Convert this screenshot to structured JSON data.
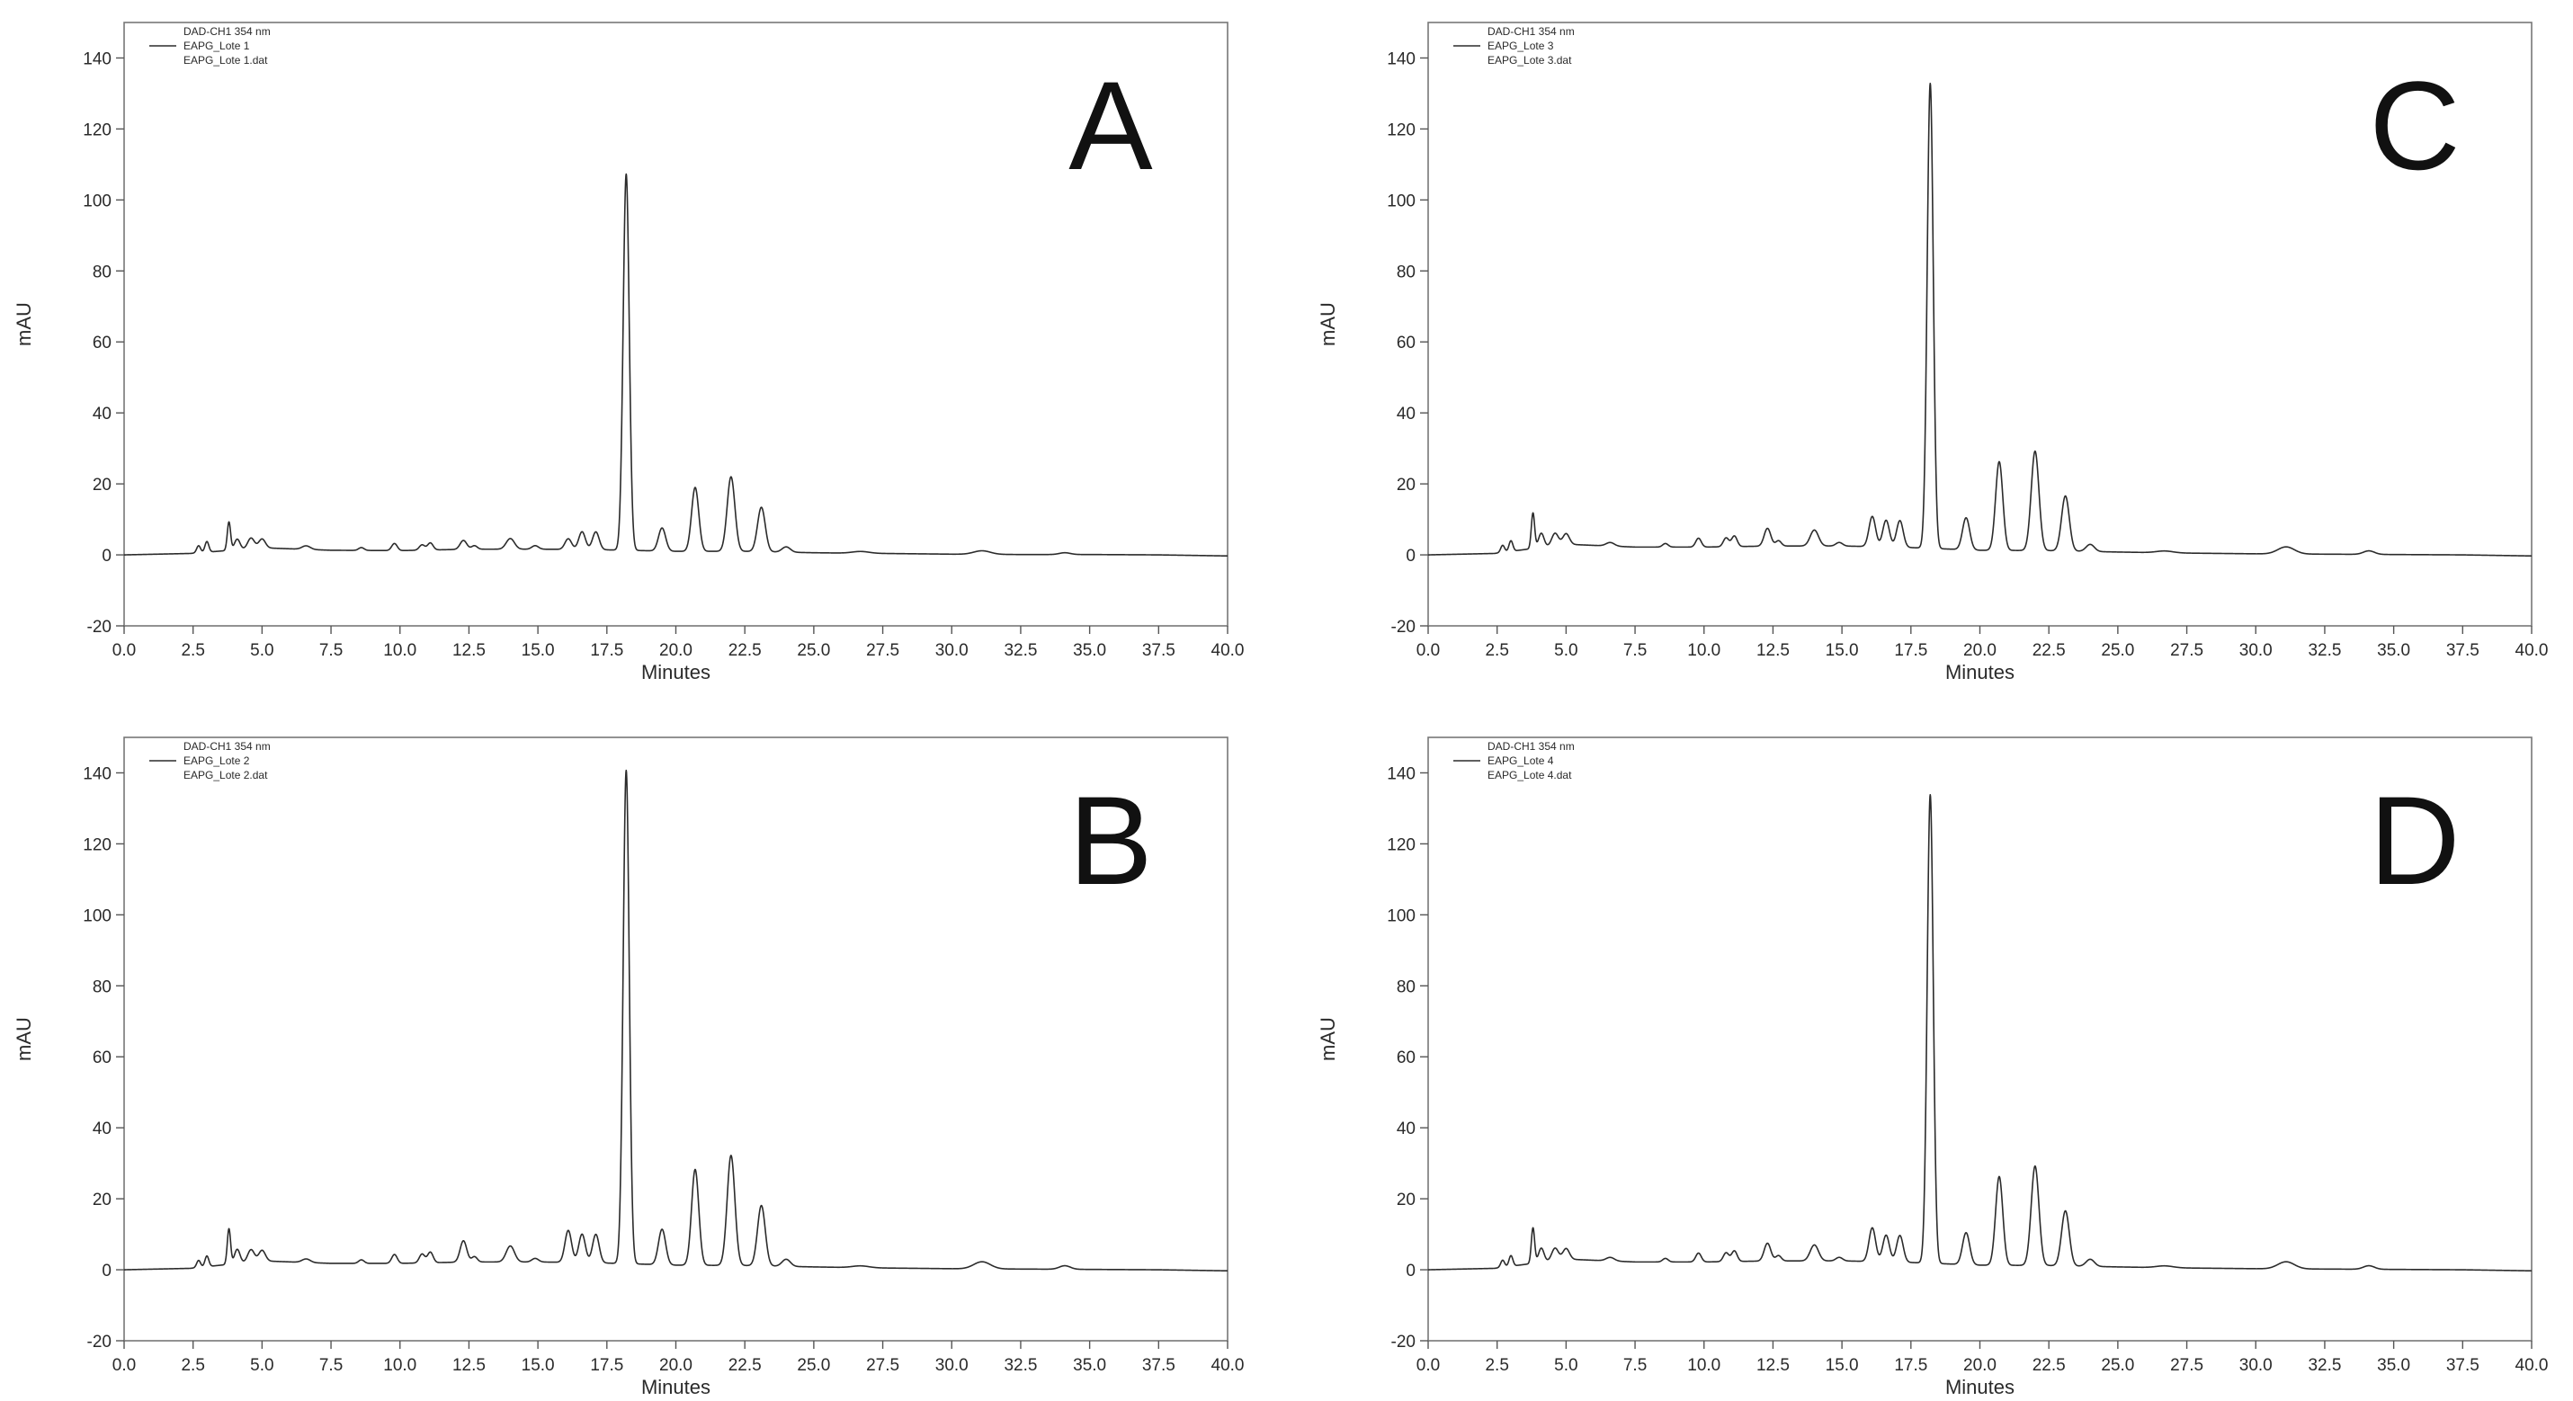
{
  "chart_data": [
    {
      "type": "line",
      "panel_label": "A",
      "xlabel": "Minutes",
      "ylabel": "mAU",
      "xlim": [
        0,
        40
      ],
      "ylim": [
        -20,
        150
      ],
      "x_ticks": [
        "0.0",
        "2.5",
        "5.0",
        "7.5",
        "10.0",
        "12.5",
        "15.0",
        "17.5",
        "20.0",
        "22.5",
        "25.0",
        "27.5",
        "30.0",
        "32.5",
        "35.0",
        "37.5",
        "40.0"
      ],
      "y_ticks": [
        "-20",
        "0",
        "20",
        "40",
        "60",
        "80",
        "100",
        "120",
        "140"
      ],
      "legend": {
        "placement": "top-left",
        "title": "DAD-CH1  354 nm",
        "entries": [
          "EAPG_Lote 1",
          "EAPG_Lote 1.dat"
        ]
      },
      "grid": false,
      "baseline": [
        [
          0,
          0
        ],
        [
          2.4,
          0.4
        ],
        [
          5,
          2
        ],
        [
          7.5,
          1.3
        ],
        [
          10,
          1.2
        ],
        [
          12.5,
          1.6
        ],
        [
          15,
          1.6
        ],
        [
          17,
          1.5
        ],
        [
          20,
          1
        ],
        [
          22.5,
          1
        ],
        [
          25,
          0.6
        ],
        [
          27.5,
          0.4
        ],
        [
          30,
          0.2
        ],
        [
          32.5,
          0.1
        ],
        [
          35,
          0.1
        ],
        [
          37.5,
          0
        ],
        [
          40,
          -0.3
        ]
      ],
      "peaks": [
        {
          "rt": 2.7,
          "height": 2,
          "width": 0.07
        },
        {
          "rt": 3.0,
          "height": 3,
          "width": 0.07
        },
        {
          "rt": 3.8,
          "height": 8,
          "width": 0.06
        },
        {
          "rt": 4.1,
          "height": 3,
          "width": 0.1
        },
        {
          "rt": 4.6,
          "height": 3,
          "width": 0.12
        },
        {
          "rt": 5.0,
          "height": 2.5,
          "width": 0.12
        },
        {
          "rt": 6.6,
          "height": 1,
          "width": 0.15
        },
        {
          "rt": 8.6,
          "height": 0.8,
          "width": 0.1
        },
        {
          "rt": 9.8,
          "height": 2,
          "width": 0.1
        },
        {
          "rt": 10.8,
          "height": 1.5,
          "width": 0.1
        },
        {
          "rt": 11.1,
          "height": 2,
          "width": 0.1
        },
        {
          "rt": 12.3,
          "height": 2.5,
          "width": 0.12
        },
        {
          "rt": 12.7,
          "height": 1,
          "width": 0.1
        },
        {
          "rt": 14.0,
          "height": 3,
          "width": 0.15
        },
        {
          "rt": 14.9,
          "height": 1,
          "width": 0.12
        },
        {
          "rt": 16.1,
          "height": 3,
          "width": 0.12
        },
        {
          "rt": 16.6,
          "height": 5,
          "width": 0.12
        },
        {
          "rt": 17.1,
          "height": 5,
          "width": 0.12
        },
        {
          "rt": 18.2,
          "height": 106,
          "width": 0.11
        },
        {
          "rt": 19.5,
          "height": 6.5,
          "width": 0.13
        },
        {
          "rt": 20.7,
          "height": 18,
          "width": 0.13
        },
        {
          "rt": 22.0,
          "height": 21,
          "width": 0.14
        },
        {
          "rt": 23.1,
          "height": 12.5,
          "width": 0.14
        },
        {
          "rt": 24.0,
          "height": 1.5,
          "width": 0.15
        },
        {
          "rt": 26.7,
          "height": 0.5,
          "width": 0.3
        },
        {
          "rt": 31.1,
          "height": 1,
          "width": 0.3
        },
        {
          "rt": 34.1,
          "height": 0.5,
          "width": 0.2
        }
      ]
    },
    {
      "type": "line",
      "panel_label": "B",
      "xlabel": "Minutes",
      "ylabel": "mAU",
      "xlim": [
        0,
        40
      ],
      "ylim": [
        -20,
        150
      ],
      "x_ticks": [
        "0.0",
        "2.5",
        "5.0",
        "7.5",
        "10.0",
        "12.5",
        "15.0",
        "17.5",
        "20.0",
        "22.5",
        "25.0",
        "27.5",
        "30.0",
        "32.5",
        "35.0",
        "37.5",
        "40.0"
      ],
      "y_ticks": [
        "-20",
        "0",
        "20",
        "40",
        "60",
        "80",
        "100",
        "120",
        "140"
      ],
      "legend": {
        "placement": "top-left",
        "title": "DAD-CH1  354 nm",
        "entries": [
          "EAPG_Lote 2",
          "EAPG_Lote 2.dat"
        ]
      },
      "grid": false,
      "baseline": [
        [
          0,
          0
        ],
        [
          2.4,
          0.4
        ],
        [
          5,
          2.5
        ],
        [
          7.5,
          1.8
        ],
        [
          10,
          1.8
        ],
        [
          12.5,
          2.2
        ],
        [
          15,
          2.2
        ],
        [
          17,
          2
        ],
        [
          20,
          1.3
        ],
        [
          22.5,
          1.2
        ],
        [
          25,
          0.8
        ],
        [
          27.5,
          0.5
        ],
        [
          30,
          0.3
        ],
        [
          32.5,
          0.2
        ],
        [
          35,
          0.1
        ],
        [
          37.5,
          0
        ],
        [
          40,
          -0.3
        ]
      ],
      "peaks": [
        {
          "rt": 2.7,
          "height": 2,
          "width": 0.07
        },
        {
          "rt": 3.0,
          "height": 3,
          "width": 0.07
        },
        {
          "rt": 3.8,
          "height": 10,
          "width": 0.06
        },
        {
          "rt": 4.1,
          "height": 4,
          "width": 0.1
        },
        {
          "rt": 4.6,
          "height": 3.5,
          "width": 0.12
        },
        {
          "rt": 5.0,
          "height": 3,
          "width": 0.12
        },
        {
          "rt": 6.6,
          "height": 1,
          "width": 0.15
        },
        {
          "rt": 8.6,
          "height": 1,
          "width": 0.1
        },
        {
          "rt": 9.8,
          "height": 2.5,
          "width": 0.1
        },
        {
          "rt": 10.8,
          "height": 2.5,
          "width": 0.1
        },
        {
          "rt": 11.1,
          "height": 3,
          "width": 0.1
        },
        {
          "rt": 12.3,
          "height": 6,
          "width": 0.12
        },
        {
          "rt": 12.7,
          "height": 1.5,
          "width": 0.1
        },
        {
          "rt": 14.0,
          "height": 4.5,
          "width": 0.15
        },
        {
          "rt": 14.9,
          "height": 1,
          "width": 0.12
        },
        {
          "rt": 16.1,
          "height": 9,
          "width": 0.12
        },
        {
          "rt": 16.6,
          "height": 8,
          "width": 0.12
        },
        {
          "rt": 17.1,
          "height": 8,
          "width": 0.12
        },
        {
          "rt": 18.2,
          "height": 139,
          "width": 0.11
        },
        {
          "rt": 19.5,
          "height": 10,
          "width": 0.13
        },
        {
          "rt": 20.7,
          "height": 27,
          "width": 0.13
        },
        {
          "rt": 22.0,
          "height": 31,
          "width": 0.14
        },
        {
          "rt": 23.1,
          "height": 17,
          "width": 0.14
        },
        {
          "rt": 24.0,
          "height": 2,
          "width": 0.15
        },
        {
          "rt": 26.7,
          "height": 0.5,
          "width": 0.3
        },
        {
          "rt": 31.1,
          "height": 2,
          "width": 0.3
        },
        {
          "rt": 34.1,
          "height": 1,
          "width": 0.2
        }
      ]
    },
    {
      "type": "line",
      "panel_label": "C",
      "xlabel": "Minutes",
      "ylabel": "mAU",
      "xlim": [
        0,
        40
      ],
      "ylim": [
        -20,
        150
      ],
      "x_ticks": [
        "0.0",
        "2.5",
        "5.0",
        "7.5",
        "10.0",
        "12.5",
        "15.0",
        "17.5",
        "20.0",
        "22.5",
        "25.0",
        "27.5",
        "30.0",
        "32.5",
        "35.0",
        "37.5",
        "40.0"
      ],
      "y_ticks": [
        "-20",
        "0",
        "20",
        "40",
        "60",
        "80",
        "100",
        "120",
        "140"
      ],
      "legend": {
        "placement": "top-left",
        "title": "DAD-CH1  354 nm",
        "entries": [
          "EAPG_Lote 3",
          "EAPG_Lote 3.dat"
        ]
      },
      "grid": false,
      "baseline": [
        [
          0,
          0
        ],
        [
          2.4,
          0.4
        ],
        [
          5,
          3
        ],
        [
          7.5,
          2.2
        ],
        [
          10,
          2.2
        ],
        [
          12.5,
          2.5
        ],
        [
          15,
          2.5
        ],
        [
          17,
          2.2
        ],
        [
          20,
          1.3
        ],
        [
          22.5,
          1.2
        ],
        [
          25,
          0.8
        ],
        [
          27.5,
          0.5
        ],
        [
          30,
          0.3
        ],
        [
          32.5,
          0.2
        ],
        [
          35,
          0.1
        ],
        [
          37.5,
          0
        ],
        [
          40,
          -0.3
        ]
      ],
      "peaks": [
        {
          "rt": 2.7,
          "height": 2,
          "width": 0.07
        },
        {
          "rt": 3.0,
          "height": 3,
          "width": 0.07
        },
        {
          "rt": 3.8,
          "height": 10,
          "width": 0.06
        },
        {
          "rt": 4.1,
          "height": 4,
          "width": 0.1
        },
        {
          "rt": 4.6,
          "height": 3.5,
          "width": 0.12
        },
        {
          "rt": 5.0,
          "height": 3,
          "width": 0.12
        },
        {
          "rt": 6.6,
          "height": 1,
          "width": 0.15
        },
        {
          "rt": 8.6,
          "height": 1,
          "width": 0.1
        },
        {
          "rt": 9.8,
          "height": 2.5,
          "width": 0.1
        },
        {
          "rt": 10.8,
          "height": 2.5,
          "width": 0.1
        },
        {
          "rt": 11.1,
          "height": 3,
          "width": 0.1
        },
        {
          "rt": 12.3,
          "height": 5,
          "width": 0.12
        },
        {
          "rt": 12.7,
          "height": 1.5,
          "width": 0.1
        },
        {
          "rt": 14.0,
          "height": 4.5,
          "width": 0.15
        },
        {
          "rt": 14.9,
          "height": 1,
          "width": 0.12
        },
        {
          "rt": 16.1,
          "height": 8.5,
          "width": 0.12
        },
        {
          "rt": 16.6,
          "height": 7.5,
          "width": 0.12
        },
        {
          "rt": 17.1,
          "height": 7.5,
          "width": 0.12
        },
        {
          "rt": 18.2,
          "height": 131,
          "width": 0.11
        },
        {
          "rt": 19.5,
          "height": 9,
          "width": 0.13
        },
        {
          "rt": 20.7,
          "height": 25,
          "width": 0.13
        },
        {
          "rt": 22.0,
          "height": 28,
          "width": 0.14
        },
        {
          "rt": 23.1,
          "height": 15.5,
          "width": 0.14
        },
        {
          "rt": 24.0,
          "height": 2,
          "width": 0.15
        },
        {
          "rt": 26.7,
          "height": 0.5,
          "width": 0.3
        },
        {
          "rt": 31.1,
          "height": 2,
          "width": 0.3
        },
        {
          "rt": 34.1,
          "height": 1,
          "width": 0.2
        }
      ]
    },
    {
      "type": "line",
      "panel_label": "D",
      "xlabel": "Minutes",
      "ylabel": "mAU",
      "xlim": [
        0,
        40
      ],
      "ylim": [
        -20,
        150
      ],
      "x_ticks": [
        "0.0",
        "2.5",
        "5.0",
        "7.5",
        "10.0",
        "12.5",
        "15.0",
        "17.5",
        "20.0",
        "22.5",
        "25.0",
        "27.5",
        "30.0",
        "32.5",
        "35.0",
        "37.5",
        "40.0"
      ],
      "y_ticks": [
        "-20",
        "0",
        "20",
        "40",
        "60",
        "80",
        "100",
        "120",
        "140"
      ],
      "legend": {
        "placement": "top-left",
        "title": "DAD-CH1  354 nm",
        "entries": [
          "EAPG_Lote 4",
          "EAPG_Lote 4.dat"
        ]
      },
      "grid": false,
      "baseline": [
        [
          0,
          0
        ],
        [
          2.4,
          0.4
        ],
        [
          5,
          3
        ],
        [
          7.5,
          2.2
        ],
        [
          10,
          2.2
        ],
        [
          12.5,
          2.5
        ],
        [
          15,
          2.5
        ],
        [
          17,
          2.2
        ],
        [
          20,
          1.3
        ],
        [
          22.5,
          1.2
        ],
        [
          25,
          0.8
        ],
        [
          27.5,
          0.5
        ],
        [
          30,
          0.3
        ],
        [
          32.5,
          0.2
        ],
        [
          35,
          0.1
        ],
        [
          37.5,
          0
        ],
        [
          40,
          -0.3
        ]
      ],
      "peaks": [
        {
          "rt": 2.7,
          "height": 2,
          "width": 0.07
        },
        {
          "rt": 3.0,
          "height": 3,
          "width": 0.07
        },
        {
          "rt": 3.8,
          "height": 10,
          "width": 0.06
        },
        {
          "rt": 4.1,
          "height": 4,
          "width": 0.1
        },
        {
          "rt": 4.6,
          "height": 3.5,
          "width": 0.12
        },
        {
          "rt": 5.0,
          "height": 3,
          "width": 0.12
        },
        {
          "rt": 6.6,
          "height": 1,
          "width": 0.15
        },
        {
          "rt": 8.6,
          "height": 1,
          "width": 0.1
        },
        {
          "rt": 9.8,
          "height": 2.5,
          "width": 0.1
        },
        {
          "rt": 10.8,
          "height": 2.5,
          "width": 0.1
        },
        {
          "rt": 11.1,
          "height": 3,
          "width": 0.1
        },
        {
          "rt": 12.3,
          "height": 5,
          "width": 0.12
        },
        {
          "rt": 12.7,
          "height": 1.5,
          "width": 0.1
        },
        {
          "rt": 14.0,
          "height": 4.5,
          "width": 0.15
        },
        {
          "rt": 14.9,
          "height": 1,
          "width": 0.12
        },
        {
          "rt": 16.1,
          "height": 9.5,
          "width": 0.12
        },
        {
          "rt": 16.6,
          "height": 7.5,
          "width": 0.12
        },
        {
          "rt": 17.1,
          "height": 7.5,
          "width": 0.12
        },
        {
          "rt": 18.2,
          "height": 132,
          "width": 0.11
        },
        {
          "rt": 19.5,
          "height": 9,
          "width": 0.13
        },
        {
          "rt": 20.7,
          "height": 25,
          "width": 0.13
        },
        {
          "rt": 22.0,
          "height": 28,
          "width": 0.14
        },
        {
          "rt": 23.1,
          "height": 15.5,
          "width": 0.14
        },
        {
          "rt": 24.0,
          "height": 2,
          "width": 0.15
        },
        {
          "rt": 26.7,
          "height": 0.5,
          "width": 0.3
        },
        {
          "rt": 31.1,
          "height": 2,
          "width": 0.3
        },
        {
          "rt": 34.1,
          "height": 1,
          "width": 0.2
        }
      ]
    }
  ],
  "colors": {
    "trace": "#2b2b2b",
    "axis": "#555555",
    "frame": "#777777"
  }
}
